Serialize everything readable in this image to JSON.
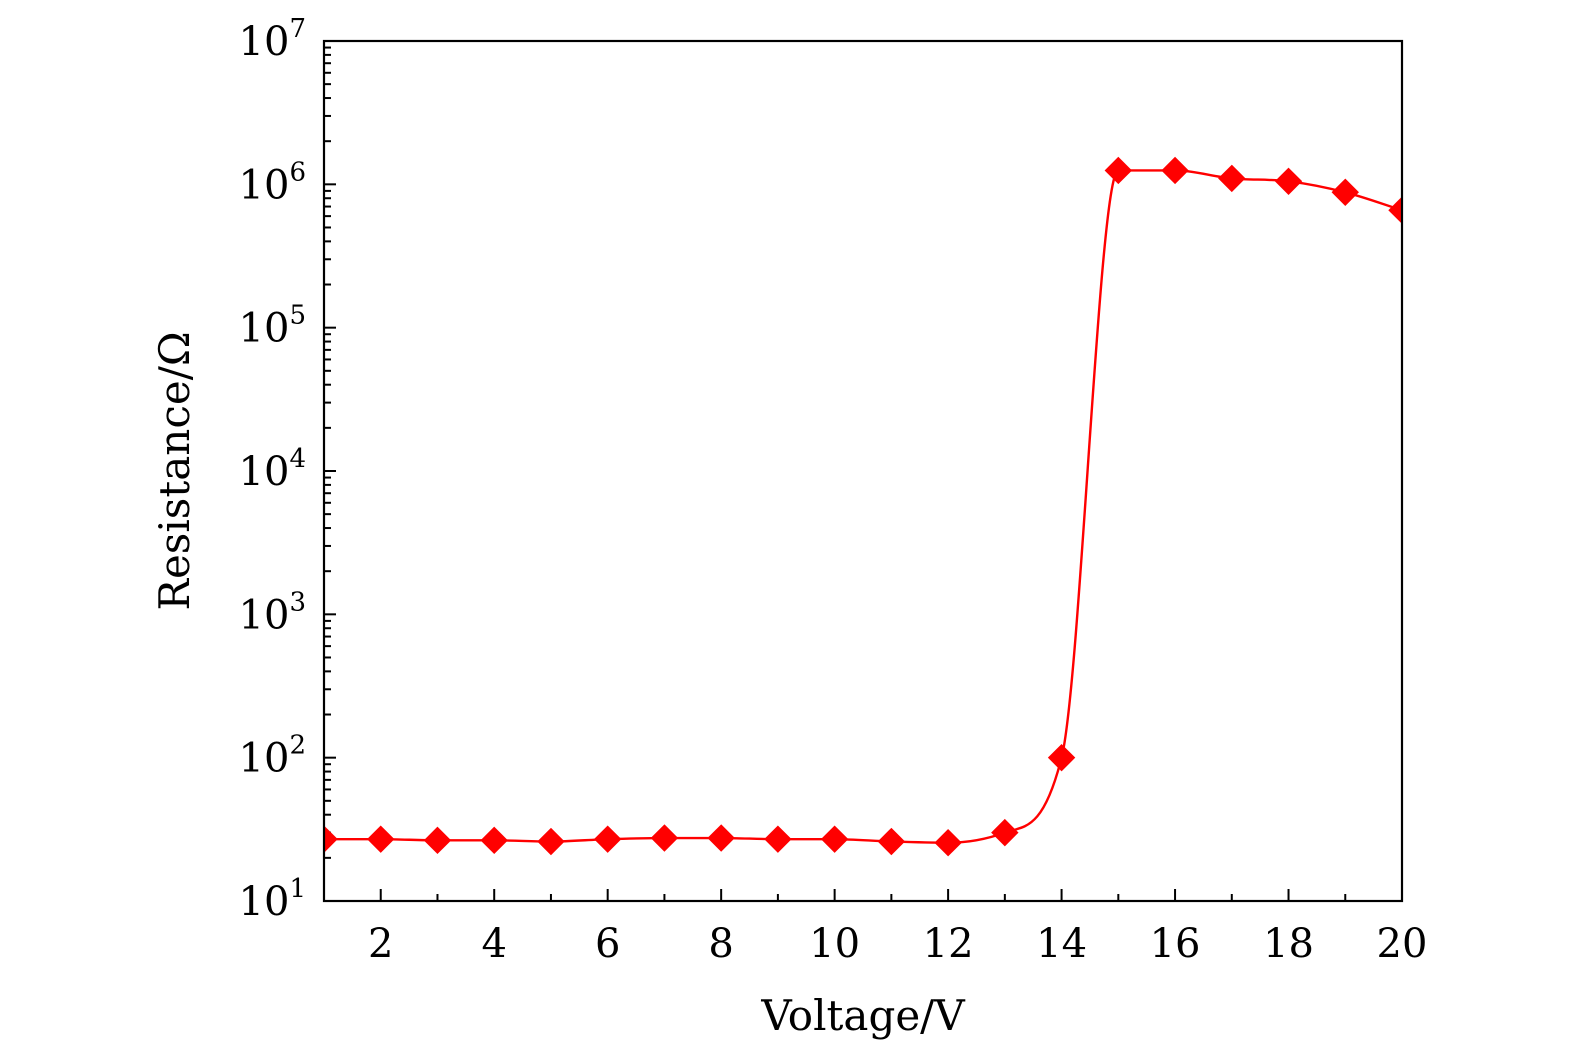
{
  "chart_data": {
    "type": "line",
    "title": "",
    "xlabel": "Voltage/V",
    "ylabel": "Resistance/Ω",
    "xlim": [
      1,
      20
    ],
    "ylim": [
      10,
      10000000
    ],
    "yscale": "log",
    "grid": false,
    "x_ticks": [
      2,
      4,
      6,
      8,
      10,
      12,
      14,
      16,
      18,
      20
    ],
    "x_tick_labels": [
      "2",
      "4",
      "6",
      "8",
      "10",
      "12",
      "14",
      "16",
      "18",
      "20"
    ],
    "y_ticks": [
      {
        "base": "10",
        "exp": "1",
        "value": 10
      },
      {
        "base": "10",
        "exp": "2",
        "value": 100
      },
      {
        "base": "10",
        "exp": "3",
        "value": 1000
      },
      {
        "base": "10",
        "exp": "4",
        "value": 10000
      },
      {
        "base": "10",
        "exp": "5",
        "value": 100000
      },
      {
        "base": "10",
        "exp": "6",
        "value": 1000000
      },
      {
        "base": "10",
        "exp": "7",
        "value": 10000000
      }
    ],
    "series": [
      {
        "color": "#ff0000",
        "marker": "diamond",
        "x": [
          1,
          2,
          3,
          4,
          5,
          6,
          7,
          8,
          9,
          10,
          11,
          12,
          13,
          14,
          15,
          16,
          17,
          18,
          19,
          20
        ],
        "y": [
          27,
          27,
          26.5,
          26.5,
          26,
          27,
          27.5,
          27.5,
          27,
          27,
          26,
          25.5,
          30,
          100,
          1250000,
          1250000,
          1100000,
          1050000,
          880000,
          660000
        ]
      }
    ]
  }
}
